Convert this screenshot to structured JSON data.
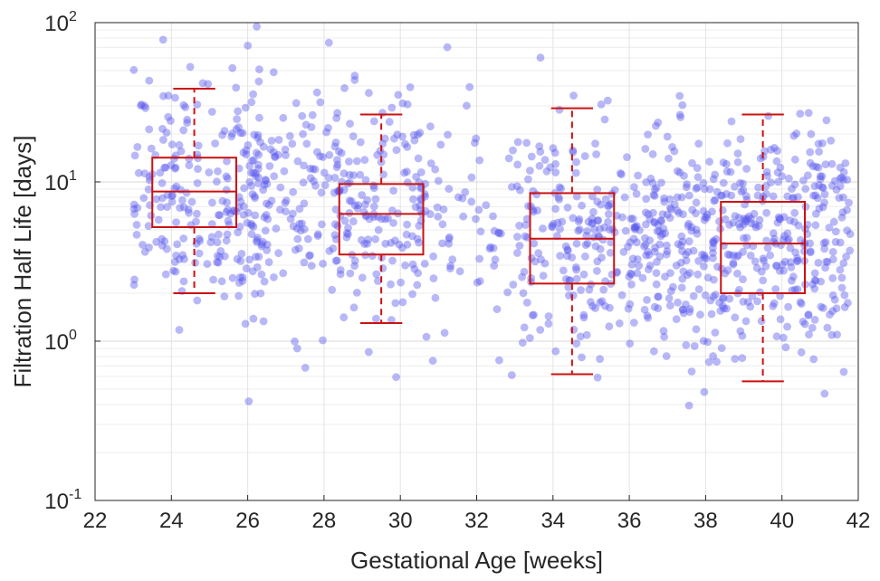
{
  "chart_data": {
    "type": "scatter",
    "overlay": "boxplot",
    "xlabel": "Gestational Age [weeks]",
    "ylabel": "Filtration Half Life [days]",
    "xlim": [
      22,
      42
    ],
    "ylim": [
      0.1,
      100
    ],
    "yscale": "log",
    "xticks": [
      22,
      24,
      26,
      28,
      30,
      32,
      34,
      36,
      38,
      40,
      42
    ],
    "yticks": [
      {
        "base": "10",
        "exp": "-1",
        "value": 0.1
      },
      {
        "base": "10",
        "exp": "0",
        "value": 1
      },
      {
        "base": "10",
        "exp": "1",
        "value": 10
      },
      {
        "base": "10",
        "exp": "2",
        "value": 100
      }
    ],
    "grid": true,
    "point_color": "#5555ee",
    "box_color": "#cc1111",
    "boxes": [
      {
        "x": 24.6,
        "low": 2.0,
        "q1": 5.2,
        "median": 8.7,
        "q3": 14.2,
        "high": 38.5
      },
      {
        "x": 29.5,
        "low": 1.3,
        "q1": 3.5,
        "median": 6.3,
        "q3": 9.7,
        "high": 26.5
      },
      {
        "x": 34.5,
        "low": 0.62,
        "q1": 2.3,
        "median": 4.4,
        "q3": 8.5,
        "high": 29.0
      },
      {
        "x": 39.5,
        "low": 0.56,
        "q1": 2.0,
        "median": 4.1,
        "q3": 7.5,
        "high": 26.5
      }
    ],
    "scatter": {
      "note_count_approx": 1200,
      "clusters": [
        {
          "x_from": 23.0,
          "x_to": 26.5,
          "median": 8.7,
          "n": 230
        },
        {
          "x_from": 26.0,
          "x_to": 28.5,
          "median": 7.5,
          "n": 130
        },
        {
          "x_from": 28.3,
          "x_to": 31.0,
          "median": 6.3,
          "n": 170
        },
        {
          "x_from": 31.0,
          "x_to": 33.2,
          "median": 5.5,
          "n": 60
        },
        {
          "x_from": 33.2,
          "x_to": 35.8,
          "median": 4.4,
          "n": 170
        },
        {
          "x_from": 35.8,
          "x_to": 38.3,
          "median": 4.2,
          "n": 220
        },
        {
          "x_from": 38.3,
          "x_to": 41.8,
          "median": 4.1,
          "n": 300
        }
      ]
    }
  }
}
